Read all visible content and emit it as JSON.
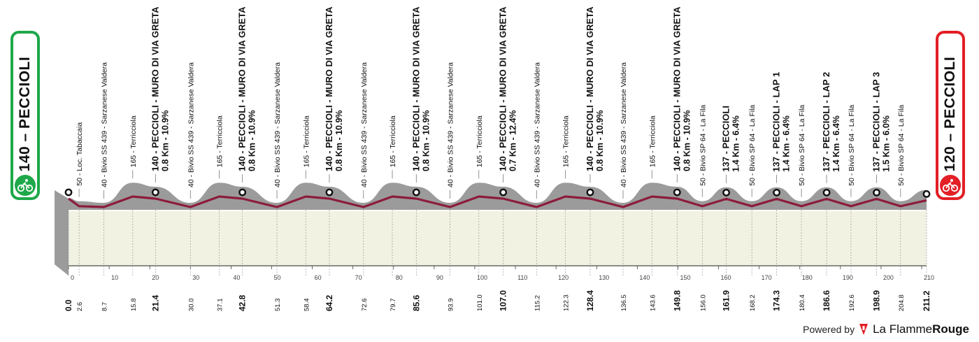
{
  "start_box": {
    "label": "140 – PECCIOLI",
    "icon": "cyclist-icon",
    "color": "#1ea84a"
  },
  "end_box": {
    "label": "120 – PECCIOLI",
    "icon": "cyclist-icon",
    "color": "#e31f26"
  },
  "footer": {
    "powered": "Powered by",
    "brand_a": "La Flamme",
    "brand_b": "Rouge"
  },
  "chart_data": {
    "type": "area",
    "title": "",
    "xlabel": "",
    "ylabel": "",
    "xlim": [
      0,
      211.2
    ],
    "scale_ticks": [
      0,
      10,
      20,
      30,
      40,
      50,
      60,
      70,
      80,
      90,
      100,
      110,
      120,
      130,
      140,
      150,
      160,
      170,
      180,
      190,
      200,
      210
    ],
    "colors": {
      "profile": "#9b9b9b",
      "road": "#8c1c3b",
      "ground": "#f1f2e2",
      "start": "#1ea84a",
      "finish": "#e31f26"
    },
    "points": [
      {
        "km": 0.0,
        "label": "",
        "alt": 140,
        "major": true
      },
      {
        "km": 2.6,
        "label": "50 - Loc. Tabaccaia",
        "alt": 50,
        "major": false
      },
      {
        "km": 8.7,
        "label": "40 - Bivio SS 439 - Sarzanese Valdera",
        "alt": 40,
        "major": false
      },
      {
        "km": 15.8,
        "label": "165 - Terricciola",
        "alt": 165,
        "major": false
      },
      {
        "km": 21.4,
        "label": "140 - PECCIOLI - MURO DI VIA GRETA",
        "sub": "0.8 Km - 10.9%",
        "alt": 140,
        "major": true
      },
      {
        "km": 30.0,
        "label": "40 - Bivio SS 439 - Sarzanese Valdera",
        "alt": 40,
        "major": false
      },
      {
        "km": 37.1,
        "label": "165 - Terricciola",
        "alt": 165,
        "major": false
      },
      {
        "km": 42.8,
        "label": "140 - PECCIOLI - MURO DI VIA GRETA",
        "sub": "0.8 Km - 10.9%",
        "alt": 140,
        "major": true
      },
      {
        "km": 51.3,
        "label": "40 - Bivio SS 439 - Sarzanese Valdera",
        "alt": 40,
        "major": false
      },
      {
        "km": 58.4,
        "label": "165 - Terricciola",
        "alt": 165,
        "major": false
      },
      {
        "km": 64.2,
        "label": "140 - PECCIOLI - MURO DI VIA GRETA",
        "sub": "0.8 Km - 10.9%",
        "alt": 140,
        "major": true
      },
      {
        "km": 72.6,
        "label": "40 - Bivio SS 439 - Sarzanese Valdera",
        "alt": 40,
        "major": false
      },
      {
        "km": 79.7,
        "label": "165 - Terricciola",
        "alt": 165,
        "major": false
      },
      {
        "km": 85.6,
        "label": "140 - PECCIOLI - MURO DI VIA GRETA",
        "sub": "0.8 Km - 10.9%",
        "alt": 140,
        "major": true
      },
      {
        "km": 93.9,
        "label": "40 - Bivio SS 439 - Sarzanese Valdera",
        "alt": 40,
        "major": false
      },
      {
        "km": 101.0,
        "label": "165 - Terricciola",
        "alt": 165,
        "major": false
      },
      {
        "km": 107.0,
        "label": "140 - PECCIOLI - MURO DI VIA GRETA",
        "sub": "0.7 Km - 12.4%",
        "alt": 140,
        "major": true
      },
      {
        "km": 115.2,
        "label": "40 - Bivio SS 439 - Sarzanese Valdera",
        "alt": 40,
        "major": false
      },
      {
        "km": 122.3,
        "label": "165 - Terricciola",
        "alt": 165,
        "major": false
      },
      {
        "km": 128.4,
        "label": "140 - PECCIOLI - MURO DI VIA GRETA",
        "sub": "0.8 Km - 10.9%",
        "alt": 140,
        "major": true
      },
      {
        "km": 136.5,
        "label": "40 - Bivio SS 439 - Sarzanese Valdera",
        "alt": 40,
        "major": false
      },
      {
        "km": 143.6,
        "label": "165 - Terricciola",
        "alt": 165,
        "major": false
      },
      {
        "km": 149.8,
        "label": "140 - PECCIOLI - MURO DI VIA GRETA",
        "sub": "0.8 Km - 10.9%",
        "alt": 140,
        "major": true
      },
      {
        "km": 156.0,
        "label": "50 - Bivio SP 64 - La Fila",
        "alt": 50,
        "major": false
      },
      {
        "km": 161.9,
        "label": "137 - PECCIOLI",
        "sub": "1.4 Km - 6.4%",
        "alt": 137,
        "major": true
      },
      {
        "km": 168.2,
        "label": "50 - Bivio SP 64 - La Fila",
        "alt": 50,
        "major": false
      },
      {
        "km": 174.3,
        "label": "137 - PECCIOLI - LAP 1",
        "sub": "1.4 Km - 6.4%",
        "alt": 137,
        "major": true
      },
      {
        "km": 180.4,
        "label": "50 - Bivio SP 64 - La Fila",
        "alt": 50,
        "major": false
      },
      {
        "km": 186.6,
        "label": "137 - PECCIOLI - LAP 2",
        "sub": "1.4 Km - 6.4%",
        "alt": 137,
        "major": true
      },
      {
        "km": 192.6,
        "label": "50 - Bivio SP 64 - La Fila",
        "alt": 50,
        "major": false
      },
      {
        "km": 198.9,
        "label": "137 - PECCIOLI - LAP 3",
        "sub": "1.5 Km - 6.0%",
        "alt": 137,
        "major": true
      },
      {
        "km": 204.8,
        "label": "50 - Bivio SP 64 - La Fila",
        "alt": 50,
        "major": false
      },
      {
        "km": 211.2,
        "label": "",
        "alt": 120,
        "major": true
      }
    ]
  }
}
